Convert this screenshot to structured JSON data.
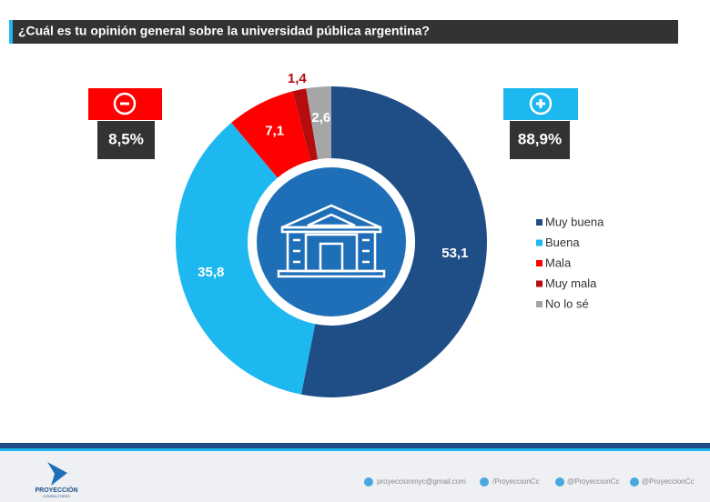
{
  "chart_data": {
    "type": "donut",
    "title": "¿Cuál es tu opinión general sobre la universidad pública argentina?",
    "categories": [
      "Muy buena",
      "Buena",
      "Mala",
      "Muy mala",
      "No lo sé"
    ],
    "values": [
      53.1,
      35.8,
      7.1,
      1.4,
      2.6
    ],
    "value_labels": [
      "53,1",
      "35,8",
      "7,1",
      "1,4",
      "2,6"
    ],
    "colors": [
      "#1f4e87",
      "#1eb8f0",
      "#ff0000",
      "#b50d0d",
      "#a6a6a6"
    ],
    "legend": "right",
    "summary": {
      "negative": "8,5%",
      "positive": "88,9%"
    }
  },
  "footer": {
    "brand": "PROYECCIÓN",
    "brand_sub": "CONSULTORES",
    "email": "proyeccionmyc@gmail.com",
    "facebook": "/ProyeccionCc",
    "twitter": "@ProyeccionCc",
    "instagram": "@ProyeccionCc"
  }
}
